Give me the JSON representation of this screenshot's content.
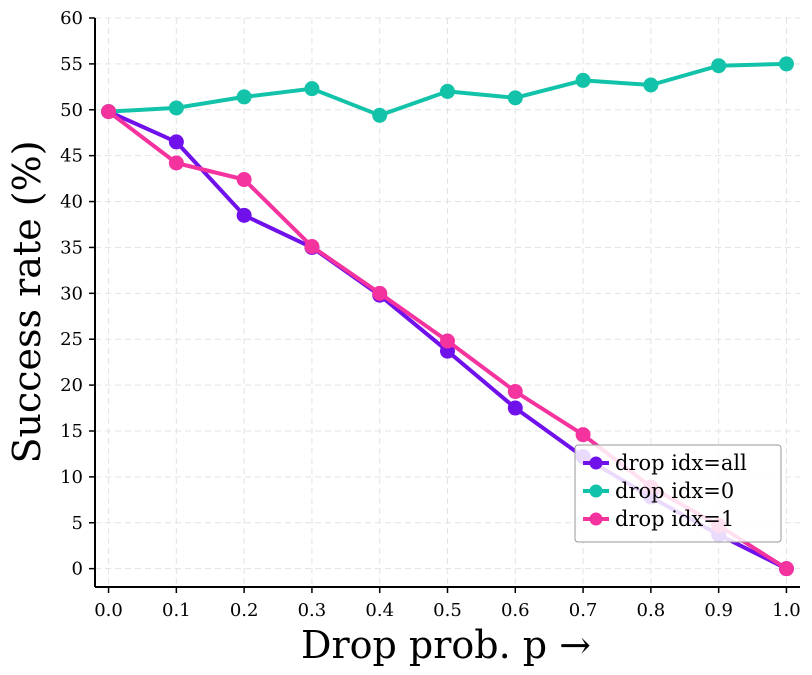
{
  "chart_data": {
    "type": "line",
    "title": "",
    "xlabel": "Drop prob. p →",
    "ylabel": "Success rate (%)",
    "x": [
      0.0,
      0.1,
      0.2,
      0.3,
      0.4,
      0.5,
      0.6,
      0.7,
      0.8,
      0.9,
      1.0
    ],
    "x_tick_labels": [
      "0.0",
      "0.1",
      "0.2",
      "0.3",
      "0.4",
      "0.5",
      "0.6",
      "0.7",
      "0.8",
      "0.9",
      "1.0"
    ],
    "y_ticks": [
      0,
      5,
      10,
      15,
      20,
      25,
      30,
      35,
      40,
      45,
      50,
      55,
      60
    ],
    "xlim": [
      -0.02,
      1.02
    ],
    "ylim": [
      -2,
      60
    ],
    "grid": true,
    "legend_position": "bottom-right",
    "series": [
      {
        "name": "drop idx=all",
        "color": "#7010ea",
        "values": [
          49.8,
          46.5,
          38.5,
          35.0,
          29.8,
          23.7,
          17.5,
          12.2,
          7.8,
          3.7,
          0.0
        ]
      },
      {
        "name": "drop idx=0",
        "color": "#12c3a9",
        "values": [
          49.8,
          50.2,
          51.4,
          52.3,
          49.4,
          52.0,
          51.3,
          53.2,
          52.7,
          54.8,
          55.0
        ]
      },
      {
        "name": "drop idx=1",
        "color": "#f5339e",
        "values": [
          49.8,
          44.2,
          42.4,
          35.1,
          30.0,
          24.8,
          19.3,
          14.6,
          8.9,
          4.7,
          0.0
        ]
      }
    ]
  }
}
